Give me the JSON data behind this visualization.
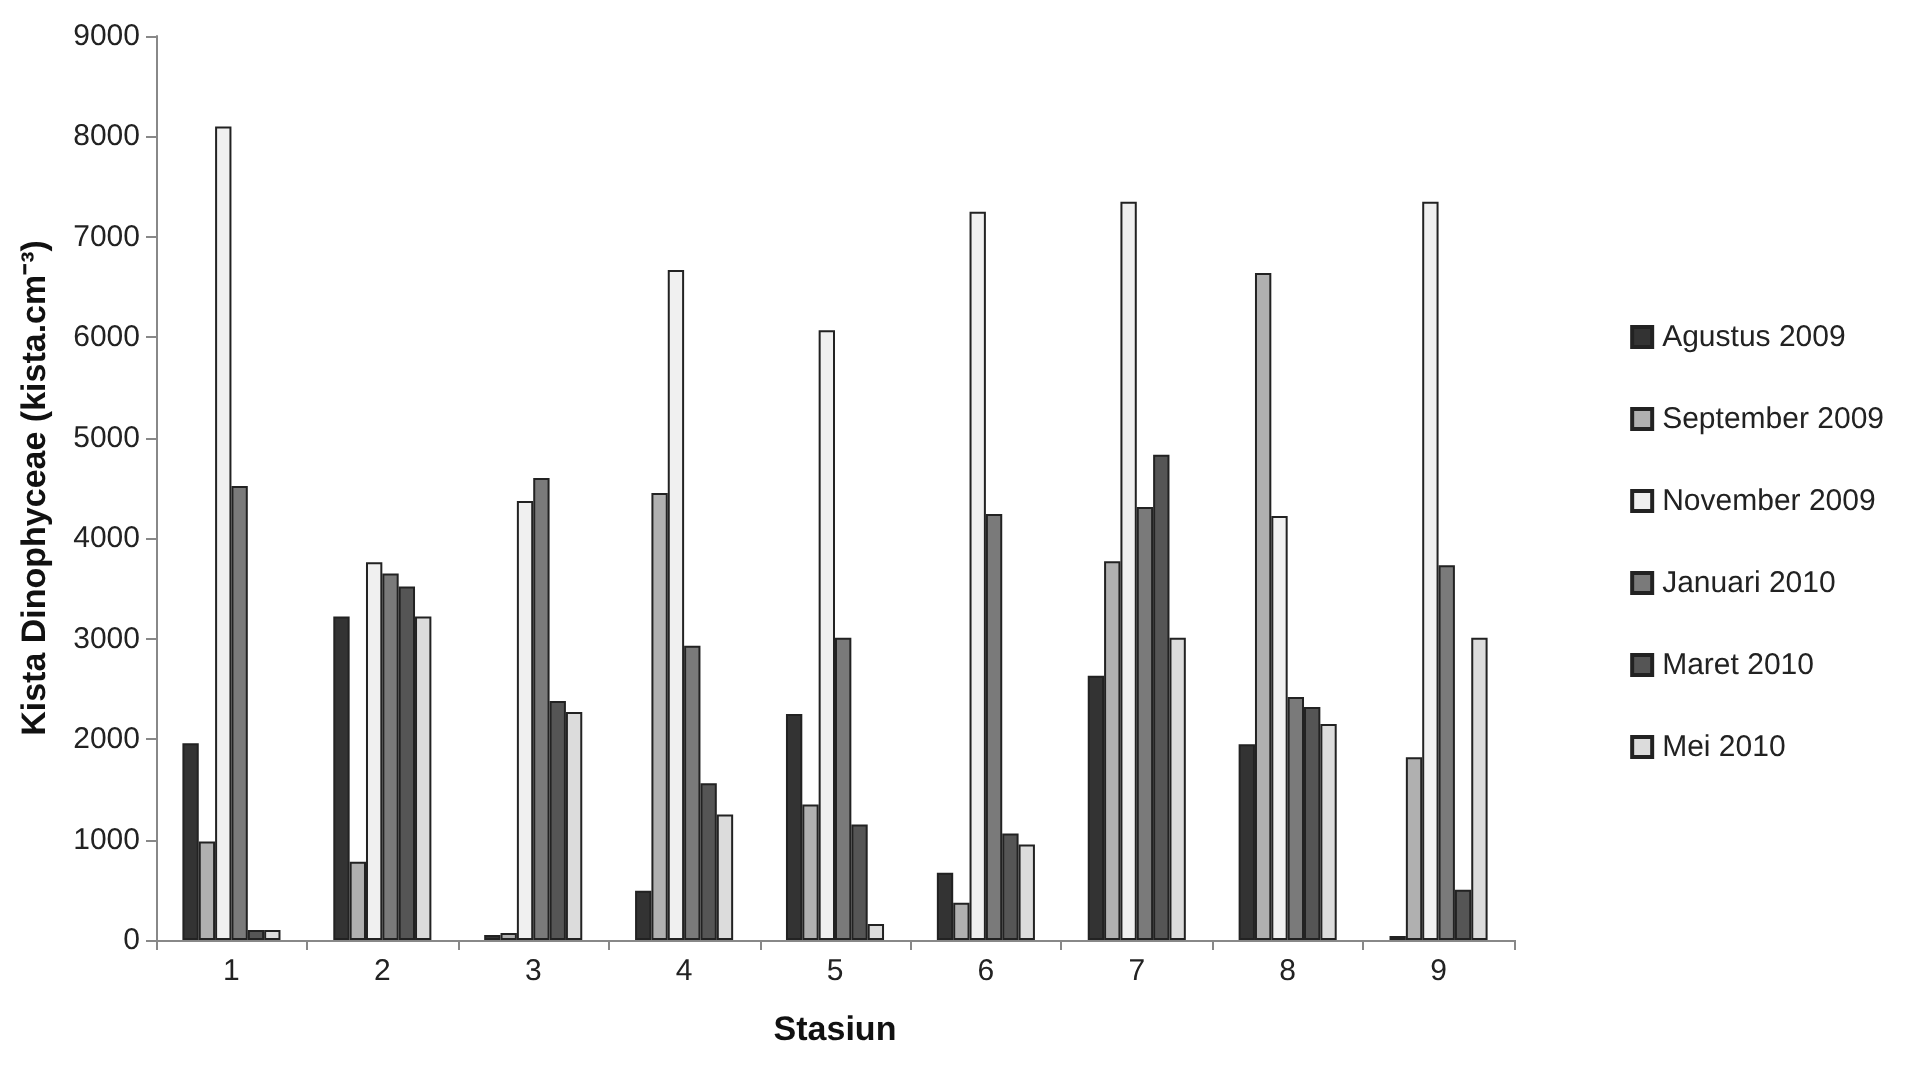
{
  "chart_data": {
    "type": "bar",
    "xlabel": "Stasiun",
    "ylabel": "Kista Dinophyceae (kista.cm⁻³)",
    "categories": [
      "1",
      "2",
      "3",
      "4",
      "5",
      "6",
      "7",
      "8",
      "9"
    ],
    "ylim": [
      0,
      9000
    ],
    "yticks": [
      0,
      1000,
      2000,
      3000,
      4000,
      5000,
      6000,
      7000,
      8000,
      9000
    ],
    "grid": false,
    "legend": "right",
    "series": [
      {
        "name": "Agustus 2009",
        "color": "#333333",
        "values": [
          1960,
          3220,
          50,
          490,
          2250,
          670,
          2630,
          1950,
          40
        ]
      },
      {
        "name": "September 2009",
        "color": "#b0b0b0",
        "values": [
          980,
          780,
          70,
          4450,
          1350,
          370,
          3770,
          6640,
          1820
        ]
      },
      {
        "name": "November 2009",
        "color": "#f0f0f0",
        "values": [
          8100,
          3760,
          4370,
          6670,
          6070,
          7250,
          7350,
          4220,
          7350
        ]
      },
      {
        "name": "Januari 2010",
        "color": "#7a7a7a",
        "values": [
          4520,
          3650,
          4600,
          2930,
          3010,
          4240,
          4310,
          2420,
          3730
        ]
      },
      {
        "name": "Maret 2010",
        "color": "#555555",
        "values": [
          100,
          3520,
          2380,
          1560,
          1150,
          1060,
          4830,
          2320,
          500
        ]
      },
      {
        "name": "Mei 2010",
        "color": "#dcdcdc",
        "values": [
          100,
          3220,
          2270,
          1250,
          160,
          950,
          3010,
          2150,
          3010
        ]
      }
    ]
  }
}
